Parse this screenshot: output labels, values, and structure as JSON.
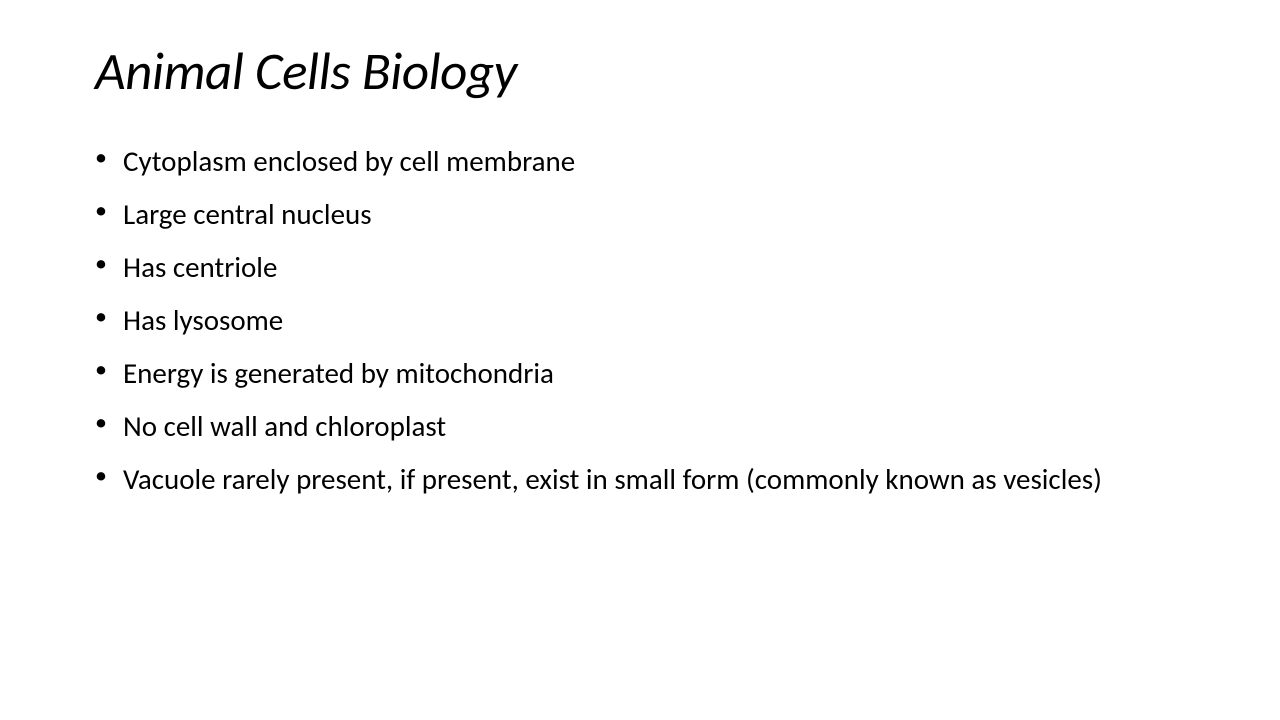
{
  "slide": {
    "title": "Animal Cells Biology",
    "title_fontsize": 53,
    "title_font_style": "italic",
    "title_color": "#000000",
    "background_color": "#ffffff",
    "bullets": [
      "Cytoplasm enclosed by cell membrane",
      "Large central nucleus",
      "Has centriole",
      "Has lysosome",
      "Energy is generated by mitochondria",
      "No cell wall and chloroplast",
      "Vacuole rarely present, if present, exist in small form (commonly known as vesicles)"
    ],
    "bullet_fontsize": 29,
    "bullet_color": "#000000",
    "bullet_marker": "•",
    "bullet_marker_color": "#000000"
  }
}
